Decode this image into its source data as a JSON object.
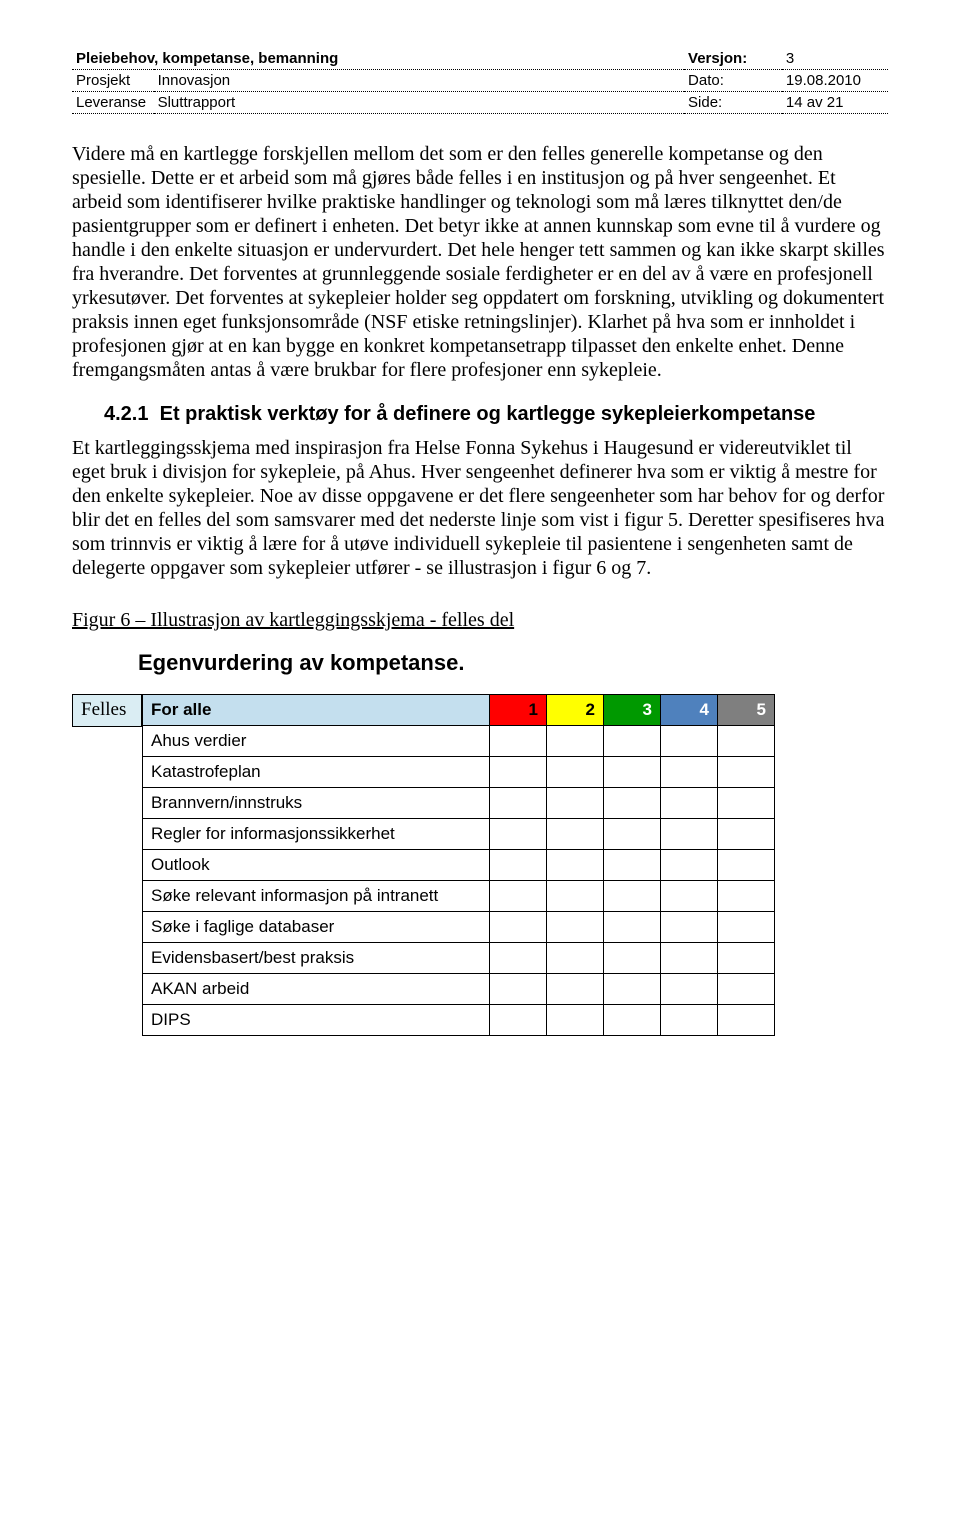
{
  "meta": {
    "title": "Pleiebehov, kompetanse, bemanning",
    "version_label": "Versjon:",
    "version_value": "3",
    "row2_left_label": "Prosjekt",
    "row2_left_value": "Innovasjon",
    "row2_right_label": "Dato:",
    "row2_right_value": "19.08.2010",
    "row3_left_label": "Leveranse",
    "row3_left_value": "Sluttrapport",
    "row3_right_label": "Side:",
    "row3_right_value": "14 av 21"
  },
  "paragraphs": {
    "p1": "Videre må en kartlegge forskjellen mellom det som er den felles generelle kompetanse og den spesielle. Dette er et arbeid som må gjøres både felles i en institusjon og på hver sengeenhet. Et arbeid som identifiserer hvilke praktiske handlinger og teknologi som må læres tilknyttet den/de pasientgrupper som er definert i enheten. Det betyr ikke at annen kunnskap som evne til å vurdere og handle i den enkelte situasjon er undervurdert. Det hele henger tett sammen og kan ikke skarpt skilles fra hverandre. Det forventes at grunnleggende sosiale ferdigheter er en del av å være en profesjonell yrkesutøver. Det forventes at sykepleier holder seg oppdatert om forskning, utvikling og dokumentert praksis innen eget funksjonsområde (NSF etiske retningslinjer). Klarhet på hva som er innholdet i profesjonen gjør at en kan bygge en konkret kompetansetrapp tilpasset den enkelte enhet. Denne fremgangsmåten antas å være brukbar for flere profesjoner enn sykepleie.",
    "p2": "Et kartleggingsskjema med inspirasjon fra Helse Fonna Sykehus i Haugesund er videreutviklet til eget bruk i divisjon for sykepleie, på Ahus. Hver sengeenhet definerer hva som er viktig å mestre for den enkelte sykepleier. Noe av disse oppgavene er det flere sengeenheter som har behov for og derfor blir det en felles del som samsvarer med det nederste linje som vist i figur 5. Deretter spesifiseres hva som trinnvis er viktig å lære for å utøve individuell sykepleie til pasientene i sengenheten samt de delegerte oppgaver som sykepleier utfører - se illustrasjon i figur 6 og 7."
  },
  "section": {
    "number": "4.2.1",
    "title": "Et praktisk verktøy for å definere og kartlegge sykepleierkompetanse"
  },
  "figure_caption": "Figur 6 – Illustrasjon av kartleggingsskjema  - felles del",
  "egen_heading": "Egenvurdering av kompetanse.",
  "comp": {
    "felles_label": "Felles",
    "for_alle": "For alle",
    "header_colors": {
      "for_alle": "#c4dfee",
      "c1": "#ff0000",
      "c2": "#ffff00",
      "c3": "#009900",
      "c4": "#4f81bd",
      "c5": "#7f7f7f"
    },
    "numbers": [
      "1",
      "2",
      "3",
      "4",
      "5"
    ],
    "rows": [
      "Ahus verdier",
      "Katastrofeplan",
      "Brannvern/innstruks",
      "Regler for informasjonssikkerhet",
      "Outlook",
      "Søke relevant informasjon på intranett",
      "Søke i faglige databaser",
      "Evidensbasert/best praksis",
      "AKAN arbeid",
      "DIPS"
    ]
  }
}
